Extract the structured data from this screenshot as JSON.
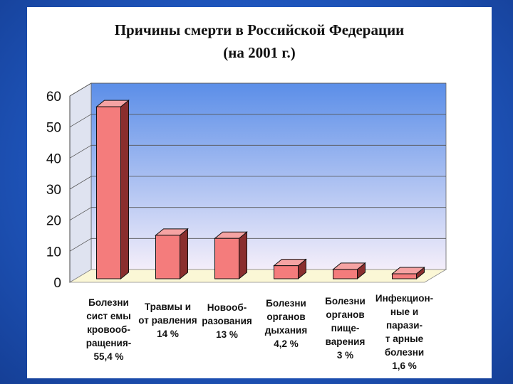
{
  "colors": {
    "bar_front": "#f47c7c",
    "bar_side": "#8a2e2e",
    "bar_top": "#f5a3a3",
    "plot_top": "#5b8ee8",
    "plot_bottom": "#f4eefa",
    "floor": "#fbf7d6"
  },
  "chart_data": {
    "type": "bar",
    "title_line1": "Причины смерти в Российской Федерации",
    "title_line2": "(на 2001 г.)",
    "categories": [
      "Болезни\nсист емы\nкровооб-\nращения-\n55,4 %",
      "Травмы и\nот равления\n14 %",
      "Новооб-\nразования\n13 %",
      "Болезни\nорганов\nдыхания\n4,2 %",
      "Болезни\nорганов\nпище-\nварения\n3 %",
      "Инфекцион-\nные и\nпарази-\nт арные\nболезни\n1,6 %"
    ],
    "values": [
      55.4,
      14,
      13,
      4.2,
      3,
      1.6
    ],
    "ylim": [
      0,
      60
    ],
    "yticks": [
      "0",
      "10",
      "20",
      "30",
      "40",
      "50",
      "60"
    ],
    "grid": true
  }
}
